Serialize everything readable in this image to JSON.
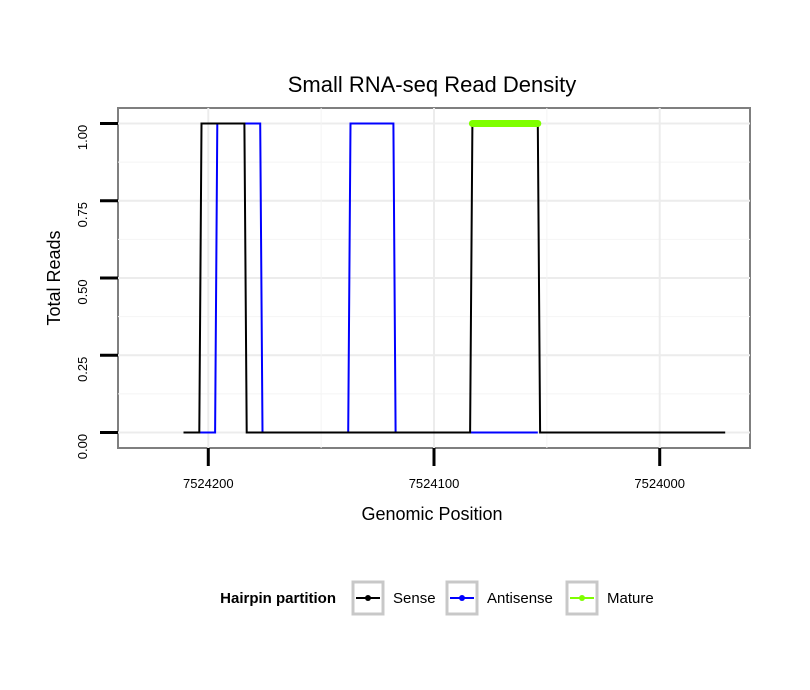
{
  "chart_data": {
    "type": "line",
    "title": "Small RNA-seq Read Density",
    "xlabel": "Genomic Position",
    "ylabel": "Total Reads",
    "xlim": [
      7524240,
      7523960
    ],
    "ylim": [
      -0.05,
      1.05
    ],
    "x_reversed": true,
    "x_ticks": [
      7524200,
      7524100,
      7524000
    ],
    "x_tick_labels": [
      "7524200",
      "7524100",
      "7524000"
    ],
    "y_ticks": [
      0,
      0.25,
      0.5,
      0.75,
      1
    ],
    "y_tick_labels": [
      "0.00",
      "0.25",
      "0.50",
      "0.75",
      "1.00"
    ],
    "grid": true,
    "legend": {
      "title": "Hairpin partition",
      "position": "bottom",
      "entries": [
        "Sense",
        "Antisense",
        "Mature"
      ]
    },
    "series": [
      {
        "name": "Sense",
        "color": "#000000",
        "x": [
          7524211,
          7524204,
          7524203,
          7524184,
          7524183,
          7524084,
          7524083,
          7524054,
          7524053,
          7523971
        ],
        "y": [
          0,
          0,
          1,
          1,
          0,
          0,
          1,
          1,
          0,
          0
        ]
      },
      {
        "name": "Antisense",
        "color": "#0000ff",
        "x": [
          7524204,
          7524197,
          7524196,
          7524177,
          7524176,
          7524138,
          7524137,
          7524118,
          7524117,
          7524084,
          7524083,
          7524054
        ],
        "y": [
          0,
          0,
          1,
          1,
          0,
          0,
          1,
          1,
          0,
          0,
          0,
          0
        ]
      },
      {
        "name": "Mature",
        "color": "#7fff00",
        "x": [
          7524083,
          7524054
        ],
        "y": [
          1,
          1
        ]
      }
    ]
  }
}
